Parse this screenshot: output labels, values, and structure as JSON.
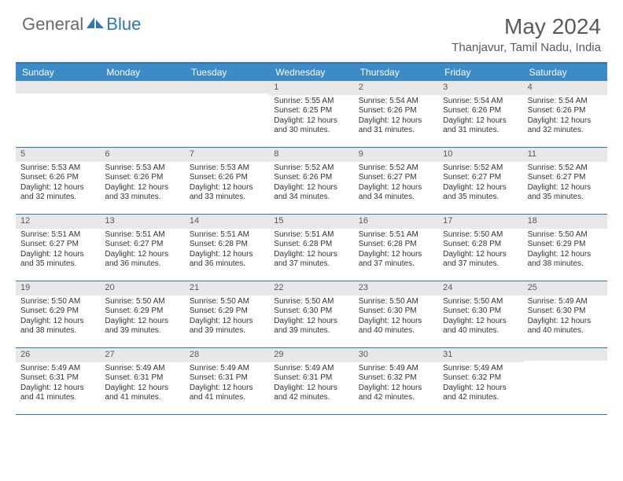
{
  "logo": {
    "general": "General",
    "blue": "Blue"
  },
  "title": "May 2024",
  "location": "Thanjavur, Tamil Nadu, India",
  "colors": {
    "header_bg": "#3b8bc9",
    "border": "#2e77b6",
    "daynum_bg": "#e8e8e8",
    "text": "#333333"
  },
  "weekdays": [
    "Sunday",
    "Monday",
    "Tuesday",
    "Wednesday",
    "Thursday",
    "Friday",
    "Saturday"
  ],
  "weeks": [
    [
      null,
      null,
      null,
      {
        "n": "1",
        "sr": "5:55 AM",
        "ss": "6:25 PM",
        "dl": "12 hours and 30 minutes."
      },
      {
        "n": "2",
        "sr": "5:54 AM",
        "ss": "6:26 PM",
        "dl": "12 hours and 31 minutes."
      },
      {
        "n": "3",
        "sr": "5:54 AM",
        "ss": "6:26 PM",
        "dl": "12 hours and 31 minutes."
      },
      {
        "n": "4",
        "sr": "5:54 AM",
        "ss": "6:26 PM",
        "dl": "12 hours and 32 minutes."
      }
    ],
    [
      {
        "n": "5",
        "sr": "5:53 AM",
        "ss": "6:26 PM",
        "dl": "12 hours and 32 minutes."
      },
      {
        "n": "6",
        "sr": "5:53 AM",
        "ss": "6:26 PM",
        "dl": "12 hours and 33 minutes."
      },
      {
        "n": "7",
        "sr": "5:53 AM",
        "ss": "6:26 PM",
        "dl": "12 hours and 33 minutes."
      },
      {
        "n": "8",
        "sr": "5:52 AM",
        "ss": "6:26 PM",
        "dl": "12 hours and 34 minutes."
      },
      {
        "n": "9",
        "sr": "5:52 AM",
        "ss": "6:27 PM",
        "dl": "12 hours and 34 minutes."
      },
      {
        "n": "10",
        "sr": "5:52 AM",
        "ss": "6:27 PM",
        "dl": "12 hours and 35 minutes."
      },
      {
        "n": "11",
        "sr": "5:52 AM",
        "ss": "6:27 PM",
        "dl": "12 hours and 35 minutes."
      }
    ],
    [
      {
        "n": "12",
        "sr": "5:51 AM",
        "ss": "6:27 PM",
        "dl": "12 hours and 35 minutes."
      },
      {
        "n": "13",
        "sr": "5:51 AM",
        "ss": "6:27 PM",
        "dl": "12 hours and 36 minutes."
      },
      {
        "n": "14",
        "sr": "5:51 AM",
        "ss": "6:28 PM",
        "dl": "12 hours and 36 minutes."
      },
      {
        "n": "15",
        "sr": "5:51 AM",
        "ss": "6:28 PM",
        "dl": "12 hours and 37 minutes."
      },
      {
        "n": "16",
        "sr": "5:51 AM",
        "ss": "6:28 PM",
        "dl": "12 hours and 37 minutes."
      },
      {
        "n": "17",
        "sr": "5:50 AM",
        "ss": "6:28 PM",
        "dl": "12 hours and 37 minutes."
      },
      {
        "n": "18",
        "sr": "5:50 AM",
        "ss": "6:29 PM",
        "dl": "12 hours and 38 minutes."
      }
    ],
    [
      {
        "n": "19",
        "sr": "5:50 AM",
        "ss": "6:29 PM",
        "dl": "12 hours and 38 minutes."
      },
      {
        "n": "20",
        "sr": "5:50 AM",
        "ss": "6:29 PM",
        "dl": "12 hours and 39 minutes."
      },
      {
        "n": "21",
        "sr": "5:50 AM",
        "ss": "6:29 PM",
        "dl": "12 hours and 39 minutes."
      },
      {
        "n": "22",
        "sr": "5:50 AM",
        "ss": "6:30 PM",
        "dl": "12 hours and 39 minutes."
      },
      {
        "n": "23",
        "sr": "5:50 AM",
        "ss": "6:30 PM",
        "dl": "12 hours and 40 minutes."
      },
      {
        "n": "24",
        "sr": "5:50 AM",
        "ss": "6:30 PM",
        "dl": "12 hours and 40 minutes."
      },
      {
        "n": "25",
        "sr": "5:49 AM",
        "ss": "6:30 PM",
        "dl": "12 hours and 40 minutes."
      }
    ],
    [
      {
        "n": "26",
        "sr": "5:49 AM",
        "ss": "6:31 PM",
        "dl": "12 hours and 41 minutes."
      },
      {
        "n": "27",
        "sr": "5:49 AM",
        "ss": "6:31 PM",
        "dl": "12 hours and 41 minutes."
      },
      {
        "n": "28",
        "sr": "5:49 AM",
        "ss": "6:31 PM",
        "dl": "12 hours and 41 minutes."
      },
      {
        "n": "29",
        "sr": "5:49 AM",
        "ss": "6:31 PM",
        "dl": "12 hours and 42 minutes."
      },
      {
        "n": "30",
        "sr": "5:49 AM",
        "ss": "6:32 PM",
        "dl": "12 hours and 42 minutes."
      },
      {
        "n": "31",
        "sr": "5:49 AM",
        "ss": "6:32 PM",
        "dl": "12 hours and 42 minutes."
      },
      null
    ]
  ],
  "labels": {
    "sunrise": "Sunrise: ",
    "sunset": "Sunset: ",
    "daylight": "Daylight: "
  }
}
